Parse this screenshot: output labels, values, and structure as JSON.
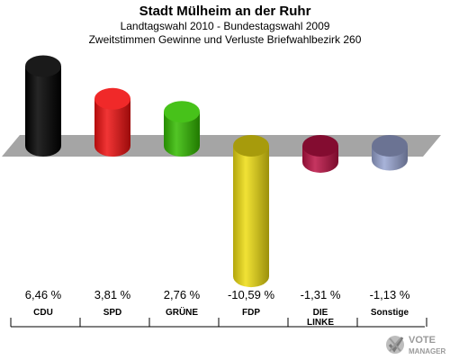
{
  "header": {
    "title": "Stadt Mülheim an der Ruhr",
    "subtitle1": "Landtagswahl 2010 - Bundestagswahl 2009",
    "subtitle2": "Zweitstimmen Gewinne und Verluste Briefwahlbezirk 260"
  },
  "chart_data": {
    "type": "bar",
    "title": "Stadt Mülheim an der Ruhr",
    "subtitle": "Landtagswahl 2010 - Bundestagswahl 2009 / Zweitstimmen Gewinne und Verluste Briefwahlbezirk 260",
    "categories": [
      "CDU",
      "SPD",
      "GRÜNE",
      "FDP",
      "DIE LINKE",
      "Sonstige"
    ],
    "category_lines": [
      [
        "CDU"
      ],
      [
        "SPD"
      ],
      [
        "GRÜNE"
      ],
      [
        "FDP"
      ],
      [
        "DIE",
        "LINKE"
      ],
      [
        "Sonstige"
      ]
    ],
    "values": [
      6.46,
      3.81,
      2.76,
      -10.59,
      -1.31,
      -1.13
    ],
    "value_labels": [
      "6,46 %",
      "3,81 %",
      "2,76 %",
      "-10,59 %",
      "-1,31 %",
      "-1,13 %"
    ],
    "colors": [
      "#000000",
      "#ee1111",
      "#33bb00",
      "#eedd11",
      "#bb1144",
      "#99a5d2"
    ],
    "xlabel": "",
    "ylabel": "",
    "ylim": [
      -10.59,
      6.46
    ],
    "grid": false,
    "legend": "none",
    "style": "3d-cylinder"
  },
  "watermark": {
    "line1": "VOTE",
    "line2": "MANAGER",
    "logo_icon": "checkmark-x-logo-icon"
  }
}
